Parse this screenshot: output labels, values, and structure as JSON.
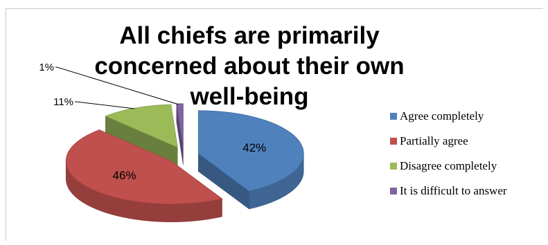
{
  "chart_data": {
    "type": "pie",
    "title": "All chiefs are primarily concerned about their own well-being",
    "categories": [
      "Agree completely",
      "Partially agree",
      "Disagree completely",
      "It is difficult to answer"
    ],
    "values": [
      42,
      46,
      11,
      1
    ],
    "data_labels": [
      "42%",
      "46%",
      "11%",
      "1%"
    ],
    "colors": [
      "#4f81bd",
      "#c0504d",
      "#9bbb59",
      "#8064a2"
    ],
    "legend_position": "right",
    "style": "3d-exploded"
  }
}
